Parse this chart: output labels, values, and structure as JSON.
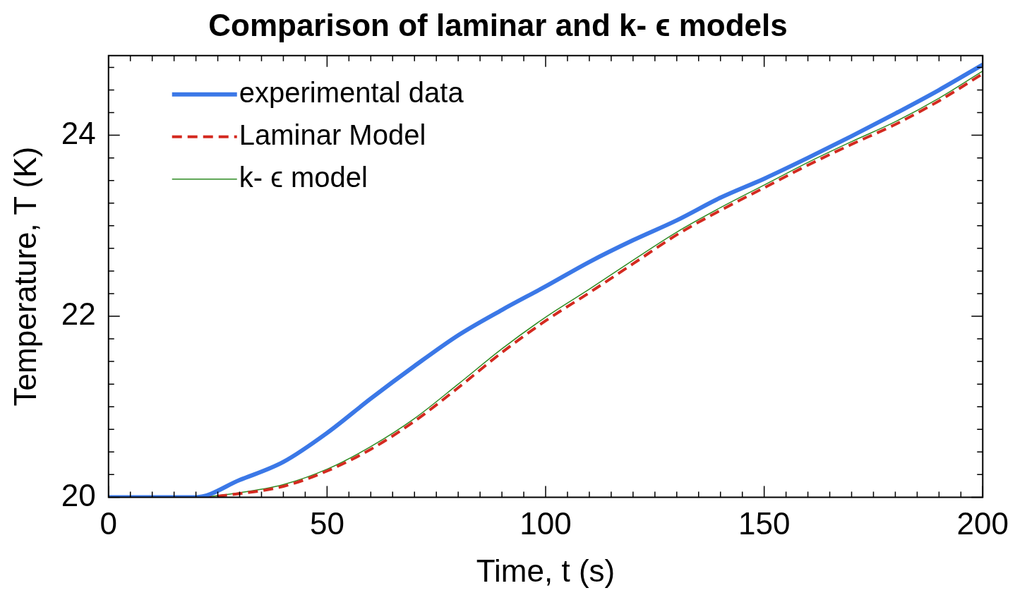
{
  "chart_data": {
    "type": "line",
    "title": "Comparison of laminar and k- ϵ models",
    "xlabel": "Time, t (s)",
    "ylabel": "Temperature, T (K)",
    "x": [
      0,
      10,
      20,
      30,
      40,
      50,
      60,
      70,
      80,
      90,
      100,
      110,
      120,
      130,
      140,
      150,
      160,
      170,
      180,
      190,
      200
    ],
    "series": [
      {
        "name": "experimental data",
        "color": "#3b78e7",
        "line_style": "solid",
        "values": [
          20,
          20,
          20,
          20.19,
          20.39,
          20.71,
          21.09,
          21.45,
          21.79,
          22.07,
          22.33,
          22.6,
          22.84,
          23.06,
          23.31,
          23.52,
          23.75,
          23.99,
          24.24,
          24.5,
          24.78
        ]
      },
      {
        "name": "Laminar Model",
        "color": "#d42a20",
        "line_style": "dashed",
        "values": [
          20,
          20,
          20,
          20.04,
          20.12,
          20.29,
          20.53,
          20.84,
          21.21,
          21.6,
          21.95,
          22.26,
          22.58,
          22.9,
          23.17,
          23.42,
          23.67,
          23.9,
          24.12,
          24.38,
          24.68
        ]
      },
      {
        "name": "k- ϵ model",
        "color": "#2e8b22",
        "line_style": "solid",
        "values": [
          20,
          20,
          20,
          20.05,
          20.14,
          20.31,
          20.56,
          20.87,
          21.25,
          21.64,
          21.99,
          22.3,
          22.62,
          22.93,
          23.2,
          23.45,
          23.7,
          23.93,
          24.15,
          24.41,
          24.71
        ]
      }
    ],
    "xlim": [
      0,
      200
    ],
    "ylim": [
      20,
      24.88
    ],
    "xticks": [
      0,
      {
        "value": 5,
        "label": null
      },
      {
        "value": 10,
        "label": null
      },
      {
        "value": 15,
        "label": null
      },
      {
        "value": 20,
        "label": null
      },
      {
        "value": 25,
        "label": null
      },
      {
        "value": 30,
        "label": null
      },
      {
        "value": 35,
        "label": null
      },
      {
        "value": 40,
        "label": null
      },
      {
        "value": 45,
        "label": null
      },
      50,
      {
        "value": 55,
        "label": null
      },
      {
        "value": 60,
        "label": null
      },
      {
        "value": 65,
        "label": null
      },
      {
        "value": 70,
        "label": null
      },
      {
        "value": 75,
        "label": null
      },
      {
        "value": 80,
        "label": null
      },
      {
        "value": 85,
        "label": null
      },
      {
        "value": 90,
        "label": null
      },
      {
        "value": 95,
        "label": null
      },
      100,
      {
        "value": 105,
        "label": null
      },
      {
        "value": 110,
        "label": null
      },
      {
        "value": 115,
        "label": null
      },
      {
        "value": 120,
        "label": null
      },
      {
        "value": 125,
        "label": null
      },
      {
        "value": 130,
        "label": null
      },
      {
        "value": 135,
        "label": null
      },
      {
        "value": 140,
        "label": null
      },
      {
        "value": 145,
        "label": null
      },
      150,
      {
        "value": 155,
        "label": null
      },
      {
        "value": 160,
        "label": null
      },
      {
        "value": 165,
        "label": null
      },
      {
        "value": 170,
        "label": null
      },
      {
        "value": 175,
        "label": null
      },
      {
        "value": 180,
        "label": null
      },
      {
        "value": 185,
        "label": null
      },
      {
        "value": 190,
        "label": null
      },
      {
        "value": 195,
        "label": null
      },
      200
    ],
    "yticks": [
      20,
      {
        "value": 20.25,
        "label": null
      },
      {
        "value": 20.5,
        "label": null
      },
      {
        "value": 20.75,
        "label": null
      },
      {
        "value": 21,
        "label": null
      },
      {
        "value": 21.25,
        "label": null
      },
      {
        "value": 21.5,
        "label": null
      },
      {
        "value": 21.75,
        "label": null
      },
      22,
      {
        "value": 22.25,
        "label": null
      },
      {
        "value": 22.5,
        "label": null
      },
      {
        "value": 22.75,
        "label": null
      },
      {
        "value": 23,
        "label": null
      },
      {
        "value": 23.25,
        "label": null
      },
      {
        "value": 23.5,
        "label": null
      },
      {
        "value": 23.75,
        "label": null
      },
      24,
      {
        "value": 24.25,
        "label": null
      },
      {
        "value": 24.5,
        "label": null
      },
      {
        "value": 24.75,
        "label": null
      }
    ],
    "legend": "top left",
    "marker": "none"
  }
}
